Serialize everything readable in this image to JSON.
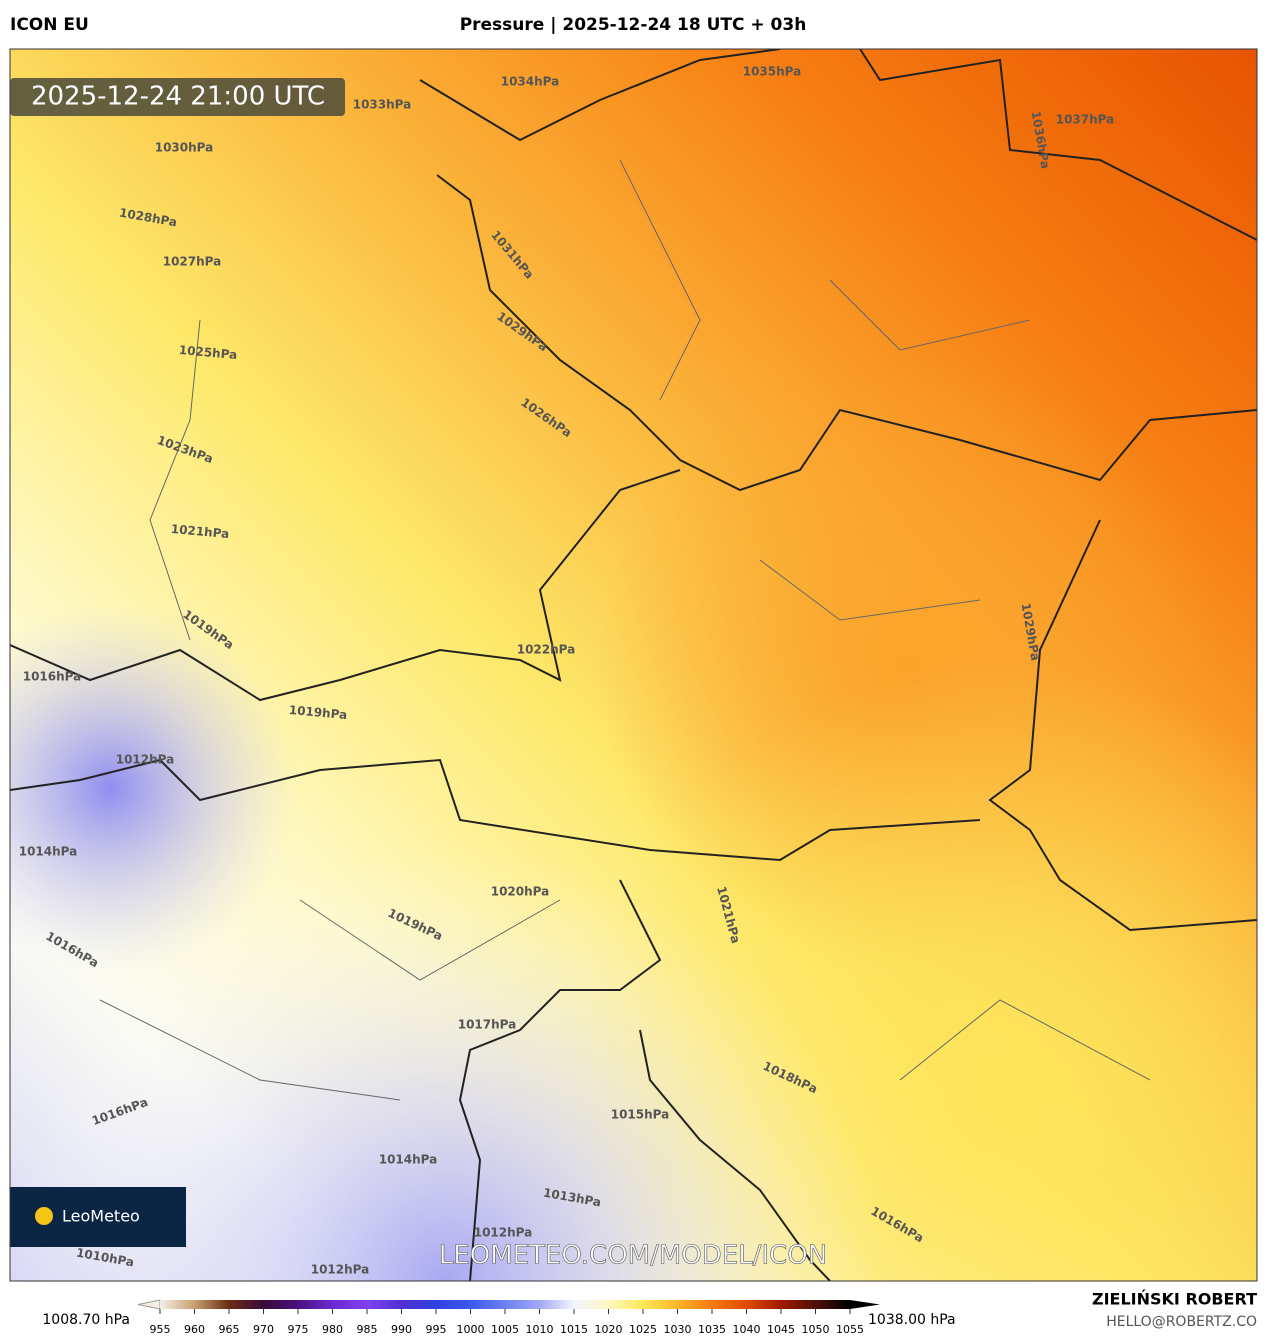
{
  "header": {
    "model": "ICON EU",
    "title": "Pressure | 2025-12-24 18 UTC + 03h"
  },
  "map": {
    "timestamp": "2025-12-24 21:00 UTC",
    "watermark": "LEOMETEO.COM/MODEL/ICON",
    "logo": "LeoMeteo",
    "contour_labels": [
      "1034hPa",
      "1035hPa",
      "1037hPa",
      "1036hPa",
      "1033hPa",
      "1030hPa",
      "1028hPa",
      "1027hPa",
      "1031hPa",
      "1029hPa",
      "1025hPa",
      "1026hPa",
      "1023hPa",
      "1021hPa",
      "1029hPa",
      "1022hPa",
      "1019hPa",
      "1016hPa",
      "1019hPa",
      "1012hPa",
      "1014hPa",
      "1020hPa",
      "1019hPa",
      "1016hPa",
      "1021hPa",
      "1017hPa",
      "1018hPa",
      "1015hPa",
      "1016hPa",
      "1014hPa",
      "1013hPa",
      "1012hPa",
      "1012hPa",
      "1010hPa",
      "1016hPa"
    ]
  },
  "colorbar": {
    "min_label": "1008.70 hPa",
    "max_label": "1038.00 hPa",
    "ticks": [
      955,
      960,
      965,
      970,
      975,
      980,
      985,
      990,
      995,
      1000,
      1005,
      1010,
      1015,
      1020,
      1025,
      1030,
      1035,
      1040,
      1045,
      1050,
      1055
    ]
  },
  "credits": {
    "author": "ZIELIŃSKI ROBERT",
    "contact": "HELLO@ROBERTZ.CO"
  }
}
